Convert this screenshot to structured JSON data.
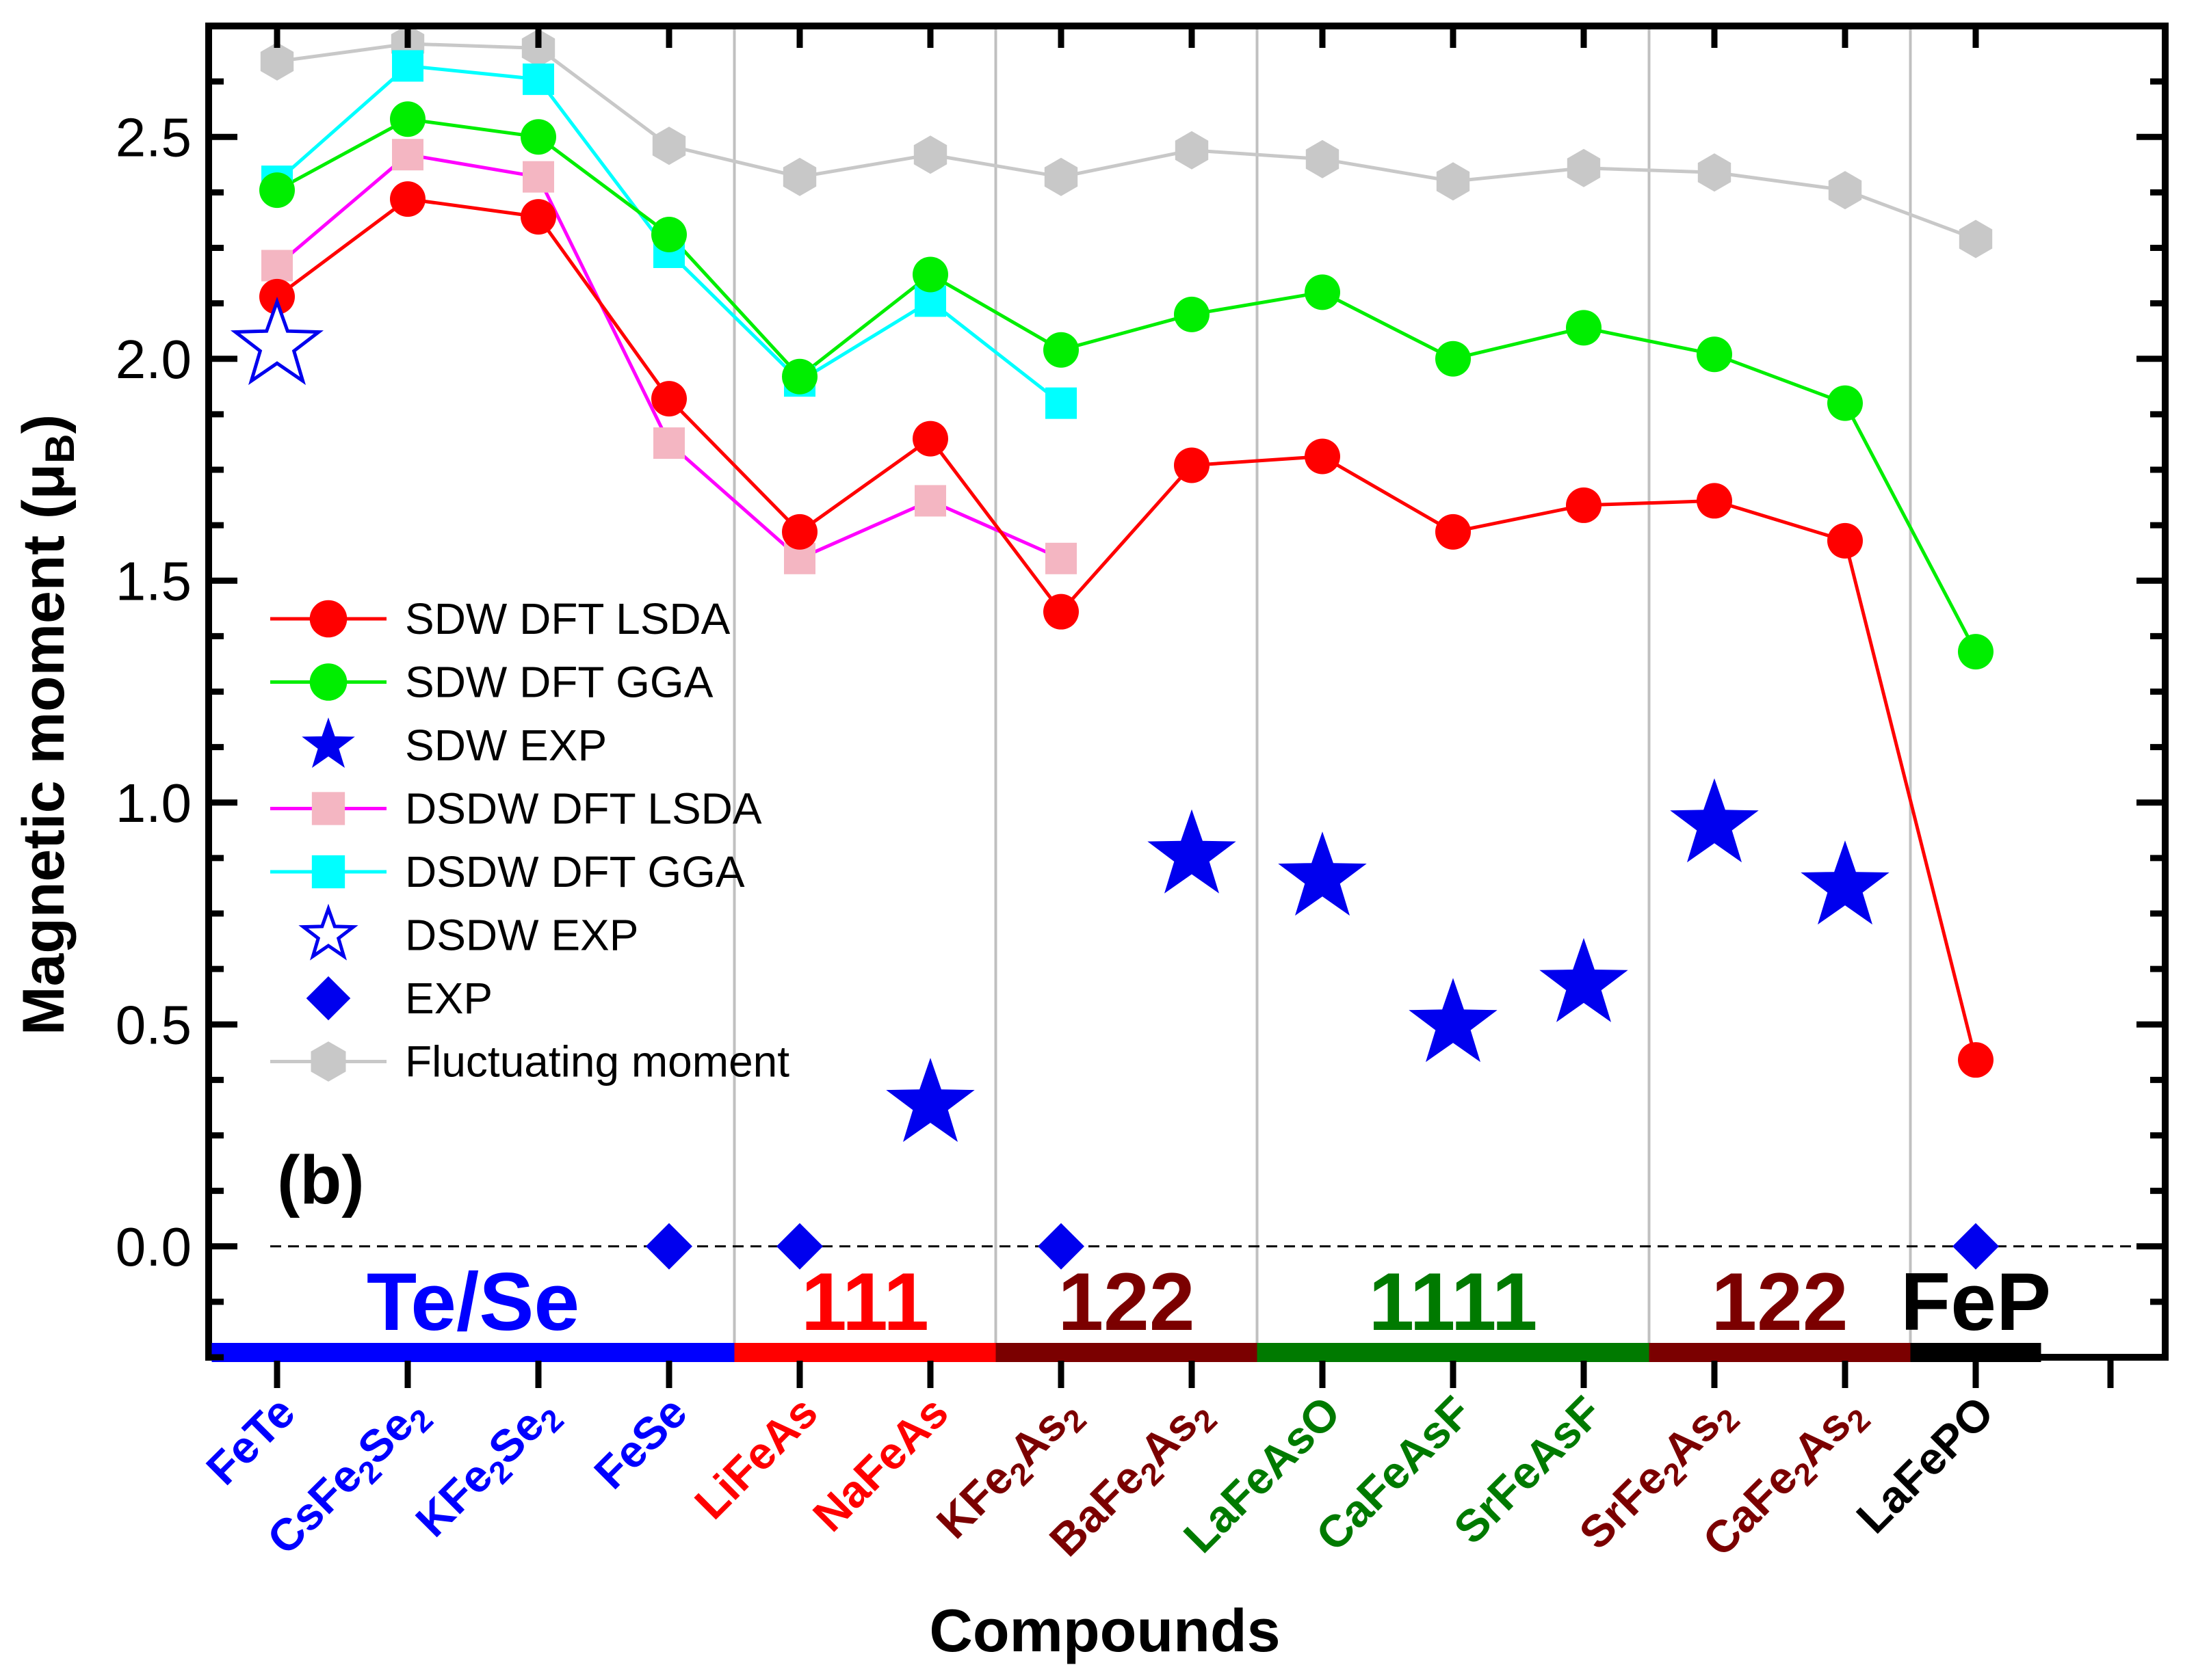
{
  "chart_data": {
    "type": "line",
    "panel_label": "(b)",
    "xlabel": "Compounds",
    "ylabel": "Magnetic moment (μ",
    "ylabel_sub": "B",
    "ylabel_close": ")",
    "ylim": [
      -0.25,
      2.75
    ],
    "yticks": [
      0.0,
      0.5,
      1.0,
      1.5,
      2.0,
      2.5
    ],
    "ytick_labels": [
      "0.0",
      "0.5",
      "1.0",
      "1.5",
      "2.0",
      "2.5"
    ],
    "categories": [
      {
        "parts": [
          [
            "FeTe",
            false
          ]
        ],
        "color": "#0000ff"
      },
      {
        "parts": [
          [
            "CsFe",
            false
          ],
          [
            "2",
            true
          ],
          [
            "Se",
            false
          ],
          [
            "2",
            true
          ]
        ],
        "color": "#0000ff"
      },
      {
        "parts": [
          [
            "KFe",
            false
          ],
          [
            "2",
            true
          ],
          [
            "Se",
            false
          ],
          [
            "2",
            true
          ]
        ],
        "color": "#0000ff"
      },
      {
        "parts": [
          [
            "FeSe",
            false
          ]
        ],
        "color": "#0000ff"
      },
      {
        "parts": [
          [
            "LiFeAs",
            false
          ]
        ],
        "color": "#ff0000"
      },
      {
        "parts": [
          [
            "NaFeAs",
            false
          ]
        ],
        "color": "#ff0000"
      },
      {
        "parts": [
          [
            "KFe",
            false
          ],
          [
            "2",
            true
          ],
          [
            "As",
            false
          ],
          [
            "2",
            true
          ]
        ],
        "color": "#7b0000"
      },
      {
        "parts": [
          [
            "BaFe",
            false
          ],
          [
            "2",
            true
          ],
          [
            "As",
            false
          ],
          [
            "2",
            true
          ]
        ],
        "color": "#7b0000"
      },
      {
        "parts": [
          [
            "LaFeAsO",
            false
          ]
        ],
        "color": "#007a00"
      },
      {
        "parts": [
          [
            "CaFeAsF",
            false
          ]
        ],
        "color": "#007a00"
      },
      {
        "parts": [
          [
            "SrFeAsF",
            false
          ]
        ],
        "color": "#007a00"
      },
      {
        "parts": [
          [
            "SrFe",
            false
          ],
          [
            "2",
            true
          ],
          [
            "As",
            false
          ],
          [
            "2",
            true
          ]
        ],
        "color": "#7b0000"
      },
      {
        "parts": [
          [
            "CaFe",
            false
          ],
          [
            "2",
            true
          ],
          [
            "As",
            false
          ],
          [
            "2",
            true
          ]
        ],
        "color": "#7b0000"
      },
      {
        "parts": [
          [
            "LaFePO",
            false
          ]
        ],
        "color": "#000000"
      }
    ],
    "groups": [
      {
        "label": "Te/Se",
        "start": 0,
        "end": 3,
        "color": "#0000ff"
      },
      {
        "label": "111",
        "start": 4,
        "end": 5,
        "color": "#ff0000"
      },
      {
        "label": "122",
        "start": 6,
        "end": 7,
        "color": "#7b0000"
      },
      {
        "label": "1111",
        "start": 8,
        "end": 10,
        "color": "#007a00"
      },
      {
        "label": "122",
        "start": 11,
        "end": 12,
        "color": "#7b0000"
      },
      {
        "label": "FeP",
        "start": 13,
        "end": 13,
        "color": "#000000"
      }
    ],
    "series": [
      {
        "name": "SDW DFT LSDA",
        "marker": "circle",
        "color": "#ff0000",
        "line_color": "#ff0000",
        "line": true,
        "values": [
          2.14,
          2.36,
          2.32,
          1.91,
          1.61,
          1.82,
          1.43,
          1.76,
          1.78,
          1.61,
          1.67,
          1.68,
          1.59,
          0.42
        ]
      },
      {
        "name": "SDW DFT GGA",
        "marker": "circle",
        "color": "#00ee00",
        "line_color": "#00ee00",
        "line": true,
        "values": [
          2.38,
          2.54,
          2.5,
          2.28,
          1.96,
          2.19,
          2.02,
          2.1,
          2.15,
          2.0,
          2.07,
          2.01,
          1.9,
          1.34
        ]
      },
      {
        "name": "SDW EXP",
        "marker": "star",
        "color": "#0000ee",
        "line": false,
        "values": [
          null,
          null,
          null,
          null,
          null,
          0.32,
          null,
          0.88,
          0.83,
          0.5,
          0.59,
          0.95,
          0.81,
          null
        ]
      },
      {
        "name": "DSDW DFT LSDA",
        "marker": "square",
        "color": "#f4b6c2",
        "line_color": "#ff00ff",
        "line": true,
        "values": [
          2.21,
          2.46,
          2.41,
          1.81,
          1.55,
          1.68,
          1.55,
          null,
          null,
          null,
          null,
          null,
          null,
          null
        ]
      },
      {
        "name": "DSDW DFT GGA",
        "marker": "square",
        "color": "#00ffff",
        "line_color": "#00ffff",
        "line": true,
        "values": [
          2.4,
          2.66,
          2.63,
          2.24,
          1.95,
          2.13,
          1.9,
          null,
          null,
          null,
          null,
          null,
          null,
          null
        ]
      },
      {
        "name": "DSDW EXP",
        "marker": "star-open",
        "color": "#0000ee",
        "line": false,
        "values": [
          2.03,
          null,
          null,
          null,
          null,
          null,
          null,
          null,
          null,
          null,
          null,
          null,
          null,
          null
        ]
      },
      {
        "name": "EXP",
        "marker": "diamond",
        "color": "#0000ee",
        "line": false,
        "values": [
          null,
          null,
          null,
          0.0,
          0.0,
          null,
          0.0,
          null,
          null,
          null,
          null,
          null,
          null,
          0.0
        ]
      },
      {
        "name": "Fluctuating moment",
        "marker": "hexagon",
        "color": "#c8c8c8",
        "line_color": "#c8c8c8",
        "line": true,
        "values": [
          2.67,
          2.71,
          2.7,
          2.48,
          2.41,
          2.46,
          2.41,
          2.47,
          2.45,
          2.4,
          2.43,
          2.42,
          2.38,
          2.27
        ]
      }
    ],
    "legend_placement": "left-center",
    "reference_line": {
      "y": 0.0,
      "style": "dashed"
    }
  }
}
